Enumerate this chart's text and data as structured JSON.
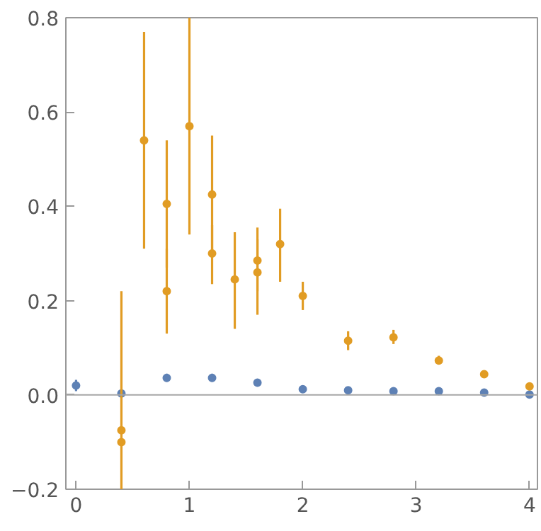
{
  "chart_data": {
    "type": "scatter",
    "marker": "circle",
    "grid": false,
    "xlim": [
      -0.09,
      4.07
    ],
    "ylim": [
      -0.2,
      0.8
    ],
    "xticks": [
      0,
      1,
      2,
      3,
      4
    ],
    "yticks": [
      {
        "value": -0.2,
        "label": "−0.2"
      },
      {
        "value": 0,
        "label": "0.0"
      },
      0.2,
      0.4,
      0.6,
      0.8
    ],
    "ref_lines": [
      {
        "axis": "y",
        "value": 0,
        "color": "#a6a6a6"
      }
    ],
    "series": [
      {
        "color": "#5e81b5",
        "x": [
          0,
          0.4,
          0.8,
          1.2,
          1.6,
          2.0,
          2.4,
          2.8,
          3.2,
          3.6,
          4.0
        ],
        "values": [
          0.02,
          0.003,
          0.036,
          0.036,
          0.026,
          0.012,
          0.01,
          0.008,
          0.008,
          0.005,
          0.001
        ],
        "errors": [
          [
            0.008,
            0.032
          ],
          null,
          [
            0.028,
            0.045
          ],
          [
            0.028,
            0.045
          ],
          [
            0.02,
            0.031
          ],
          null,
          null,
          null,
          null,
          null,
          null
        ]
      },
      {
        "color": "#e19c24",
        "x": [
          0.4,
          0.4,
          0.6,
          0.8,
          0.8,
          1.0,
          1.2,
          1.2,
          1.4,
          1.6,
          1.6,
          1.8,
          2.0,
          2.4,
          2.8,
          3.2,
          3.6,
          4.0
        ],
        "values": [
          -0.075,
          -0.1,
          0.54,
          0.405,
          0.22,
          0.57,
          0.425,
          0.3,
          0.245,
          0.285,
          0.26,
          0.32,
          0.21,
          0.115,
          0.122,
          0.073,
          0.044,
          0.018
        ],
        "errors": [
          [
            -0.2,
            0.22
          ],
          null,
          [
            0.31,
            0.77
          ],
          [
            0.27,
            0.54
          ],
          [
            0.13,
            0.31
          ],
          [
            0.34,
            0.8
          ],
          [
            0.3,
            0.55
          ],
          [
            0.235,
            0.36
          ],
          [
            0.14,
            0.345
          ],
          [
            0.22,
            0.355
          ],
          [
            0.17,
            0.33
          ],
          [
            0.24,
            0.395
          ],
          [
            0.18,
            0.24
          ],
          [
            0.095,
            0.135
          ],
          [
            0.108,
            0.138
          ],
          [
            0.065,
            0.083
          ],
          null,
          null
        ]
      }
    ]
  }
}
